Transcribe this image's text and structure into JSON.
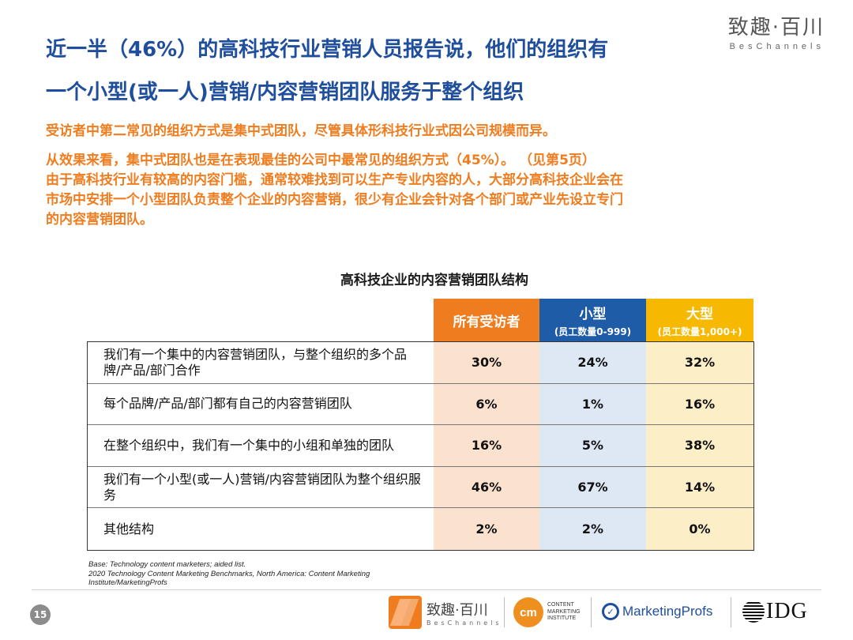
{
  "brand": {
    "cn": "致趣·百川",
    "en": "BesChannels"
  },
  "title": {
    "line1": "近一半（46%）的高科技行业营销人员报告说，他们的组织有",
    "line2": "一个小型(或一人)营销/内容营销团队服务于整个组织"
  },
  "body": {
    "p1": "受访者中第二常见的组织方式是集中式团队，尽管具体形科技行业式因公司规模而异。",
    "p2_line1": "从效果来看，集中式团队也是在表现最佳的公司中最常见的组织方式（45%）。 （见第5页）",
    "p2_line2": "由于高科技行业有较高的内容门槛，通常较难找到可以生产专业内容的人，大部分高科技企业会在",
    "p2_line3": "市场中安排一个小型团队负责整个企业的内容营销，很少有企业会针对各个部门或产业先设立专门",
    "p2_line4": "的内容营销团队。"
  },
  "table": {
    "title": "高科技企业的内容营销团队结构",
    "headers": {
      "all": "所有受访者",
      "small": "小型",
      "small_sub": "(员工数量0-999)",
      "large": "大型",
      "large_sub": "(员工数量1,000+)"
    },
    "rows": [
      {
        "label": "我们有一个集中的内容营销团队，与整个组织的多个品牌/产品/部门合作",
        "all": "30%",
        "small": "24%",
        "large": "32%"
      },
      {
        "label": "每个品牌/产品/部门都有自己的内容营销团队",
        "all": "6%",
        "small": "1%",
        "large": "16%"
      },
      {
        "label": "在整个组织中，我们有一个集中的小组和单独的团队",
        "all": "16%",
        "small": "5%",
        "large": "38%"
      },
      {
        "label": "我们有一个小型(或一人)营销/内容营销团队为整个组织服务",
        "all": "46%",
        "small": "67%",
        "large": "14%"
      },
      {
        "label": "其他结构",
        "all": "2%",
        "small": "2%",
        "large": "0%"
      }
    ]
  },
  "source": {
    "line1": "Base: Technology content marketers; aided list.",
    "line2": "2020 Technology Content Marketing Benchmarks, North America: Content Marketing",
    "line3": "Institute/MarketingProfs"
  },
  "footer": {
    "page_number": "15",
    "logos": {
      "bes_cn": "致趣·百川",
      "bes_en": "BesChannels",
      "cmi_mark": "cm",
      "cmi_l1": "CONTENT",
      "cmi_l2": "MARKETING",
      "cmi_l3": "INSTITUTE",
      "mp": "MarketingProfs",
      "idg": "IDG"
    }
  }
}
